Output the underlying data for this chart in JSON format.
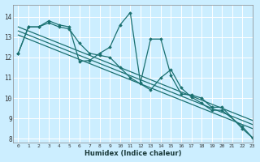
{
  "xlabel": "Humidex (Indice chaleur)",
  "bg_color": "#cceeff",
  "grid_color": "#ffffff",
  "line_color": "#1a7070",
  "xlim": [
    -0.5,
    23
  ],
  "ylim": [
    7.8,
    14.6
  ],
  "yticks": [
    8,
    9,
    10,
    11,
    12,
    13,
    14
  ],
  "xticks": [
    0,
    1,
    2,
    3,
    4,
    5,
    6,
    7,
    8,
    9,
    10,
    11,
    12,
    13,
    14,
    15,
    16,
    17,
    18,
    19,
    20,
    21,
    22,
    23
  ],
  "series": [
    {
      "x": [
        0,
        1,
        2,
        3,
        4,
        5,
        6,
        7,
        8,
        9,
        10,
        11,
        12,
        13,
        14,
        15,
        16,
        17,
        18,
        19,
        20,
        22,
        23
      ],
      "y": [
        12.2,
        13.5,
        13.5,
        13.8,
        13.6,
        13.5,
        11.8,
        11.85,
        12.2,
        12.5,
        13.6,
        14.2,
        10.75,
        12.9,
        12.9,
        11.1,
        10.2,
        10.15,
        10.0,
        9.55,
        9.55,
        8.5,
        8.05
      ],
      "marker": true,
      "lw": 0.9
    },
    {
      "x": [
        0,
        1,
        2,
        3,
        4,
        5,
        6,
        7,
        8,
        9,
        10,
        11,
        12,
        13,
        14,
        15,
        16,
        17,
        18,
        19,
        20,
        22,
        23
      ],
      "y": [
        12.2,
        13.5,
        13.5,
        13.7,
        13.5,
        13.4,
        12.7,
        12.2,
        12.1,
        12.0,
        11.5,
        11.0,
        10.7,
        10.4,
        11.0,
        11.4,
        10.5,
        10.05,
        9.75,
        9.4,
        9.4,
        8.6,
        8.05
      ],
      "marker": true,
      "lw": 0.9
    },
    {
      "x": [
        0,
        1,
        2,
        3,
        4,
        5,
        6,
        7,
        8,
        9,
        10,
        11,
        12,
        13,
        14,
        15,
        16,
        17,
        18,
        19,
        20,
        22,
        23
      ],
      "y": [
        13.5,
        13.3,
        13.1,
        12.9,
        12.7,
        12.5,
        12.3,
        12.1,
        11.9,
        11.7,
        11.5,
        11.3,
        11.1,
        10.9,
        10.7,
        10.5,
        10.3,
        10.1,
        9.9,
        9.7,
        9.5,
        9.1,
        8.9
      ],
      "marker": false,
      "lw": 0.9
    },
    {
      "x": [
        0,
        1,
        2,
        3,
        4,
        5,
        6,
        7,
        8,
        9,
        10,
        11,
        12,
        13,
        14,
        15,
        16,
        17,
        18,
        19,
        20,
        22,
        23
      ],
      "y": [
        13.3,
        13.1,
        12.9,
        12.7,
        12.5,
        12.3,
        12.1,
        11.9,
        11.7,
        11.5,
        11.3,
        11.1,
        10.9,
        10.7,
        10.5,
        10.3,
        10.1,
        9.9,
        9.7,
        9.5,
        9.3,
        8.9,
        8.7
      ],
      "marker": false,
      "lw": 0.9
    },
    {
      "x": [
        0,
        1,
        2,
        3,
        4,
        5,
        6,
        7,
        8,
        9,
        10,
        11,
        12,
        13,
        14,
        15,
        16,
        17,
        18,
        19,
        20,
        22,
        23
      ],
      "y": [
        13.1,
        12.9,
        12.7,
        12.5,
        12.3,
        12.1,
        11.9,
        11.7,
        11.5,
        11.3,
        11.1,
        10.9,
        10.7,
        10.5,
        10.3,
        10.1,
        9.9,
        9.7,
        9.5,
        9.3,
        9.1,
        8.7,
        8.5
      ],
      "marker": false,
      "lw": 0.9
    }
  ]
}
